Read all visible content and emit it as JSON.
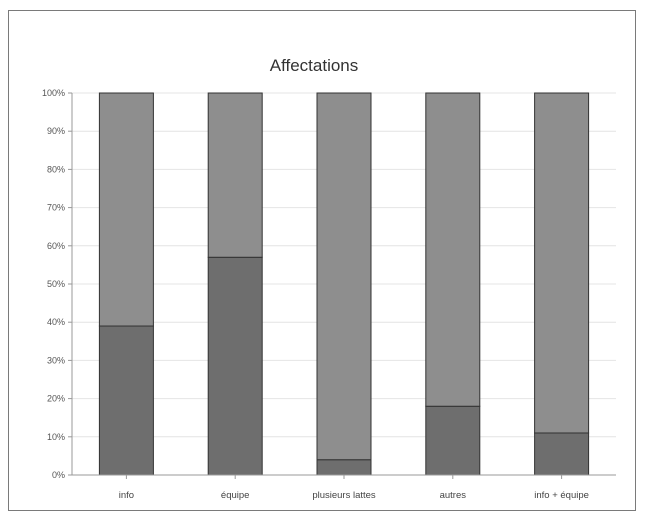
{
  "chart_data": {
    "type": "bar",
    "stacked": true,
    "percent_stacked": true,
    "title": "Affectations",
    "xlabel": "",
    "ylabel": "",
    "ylim": [
      0,
      100
    ],
    "y_ticks": [
      "0%",
      "10%",
      "20%",
      "30%",
      "40%",
      "50%",
      "60%",
      "70%",
      "80%",
      "90%",
      "100%"
    ],
    "categories": [
      "info",
      "équipe",
      "plusieurs lattes",
      "autres",
      "info + équipe"
    ],
    "series": [
      {
        "values": [
          39,
          57,
          4,
          18,
          11
        ]
      },
      {
        "values": [
          61,
          43,
          96,
          82,
          89
        ]
      }
    ],
    "colors": [
      "#6e6e6e",
      "#8e8e8e"
    ],
    "grid": true,
    "legend": "none"
  }
}
